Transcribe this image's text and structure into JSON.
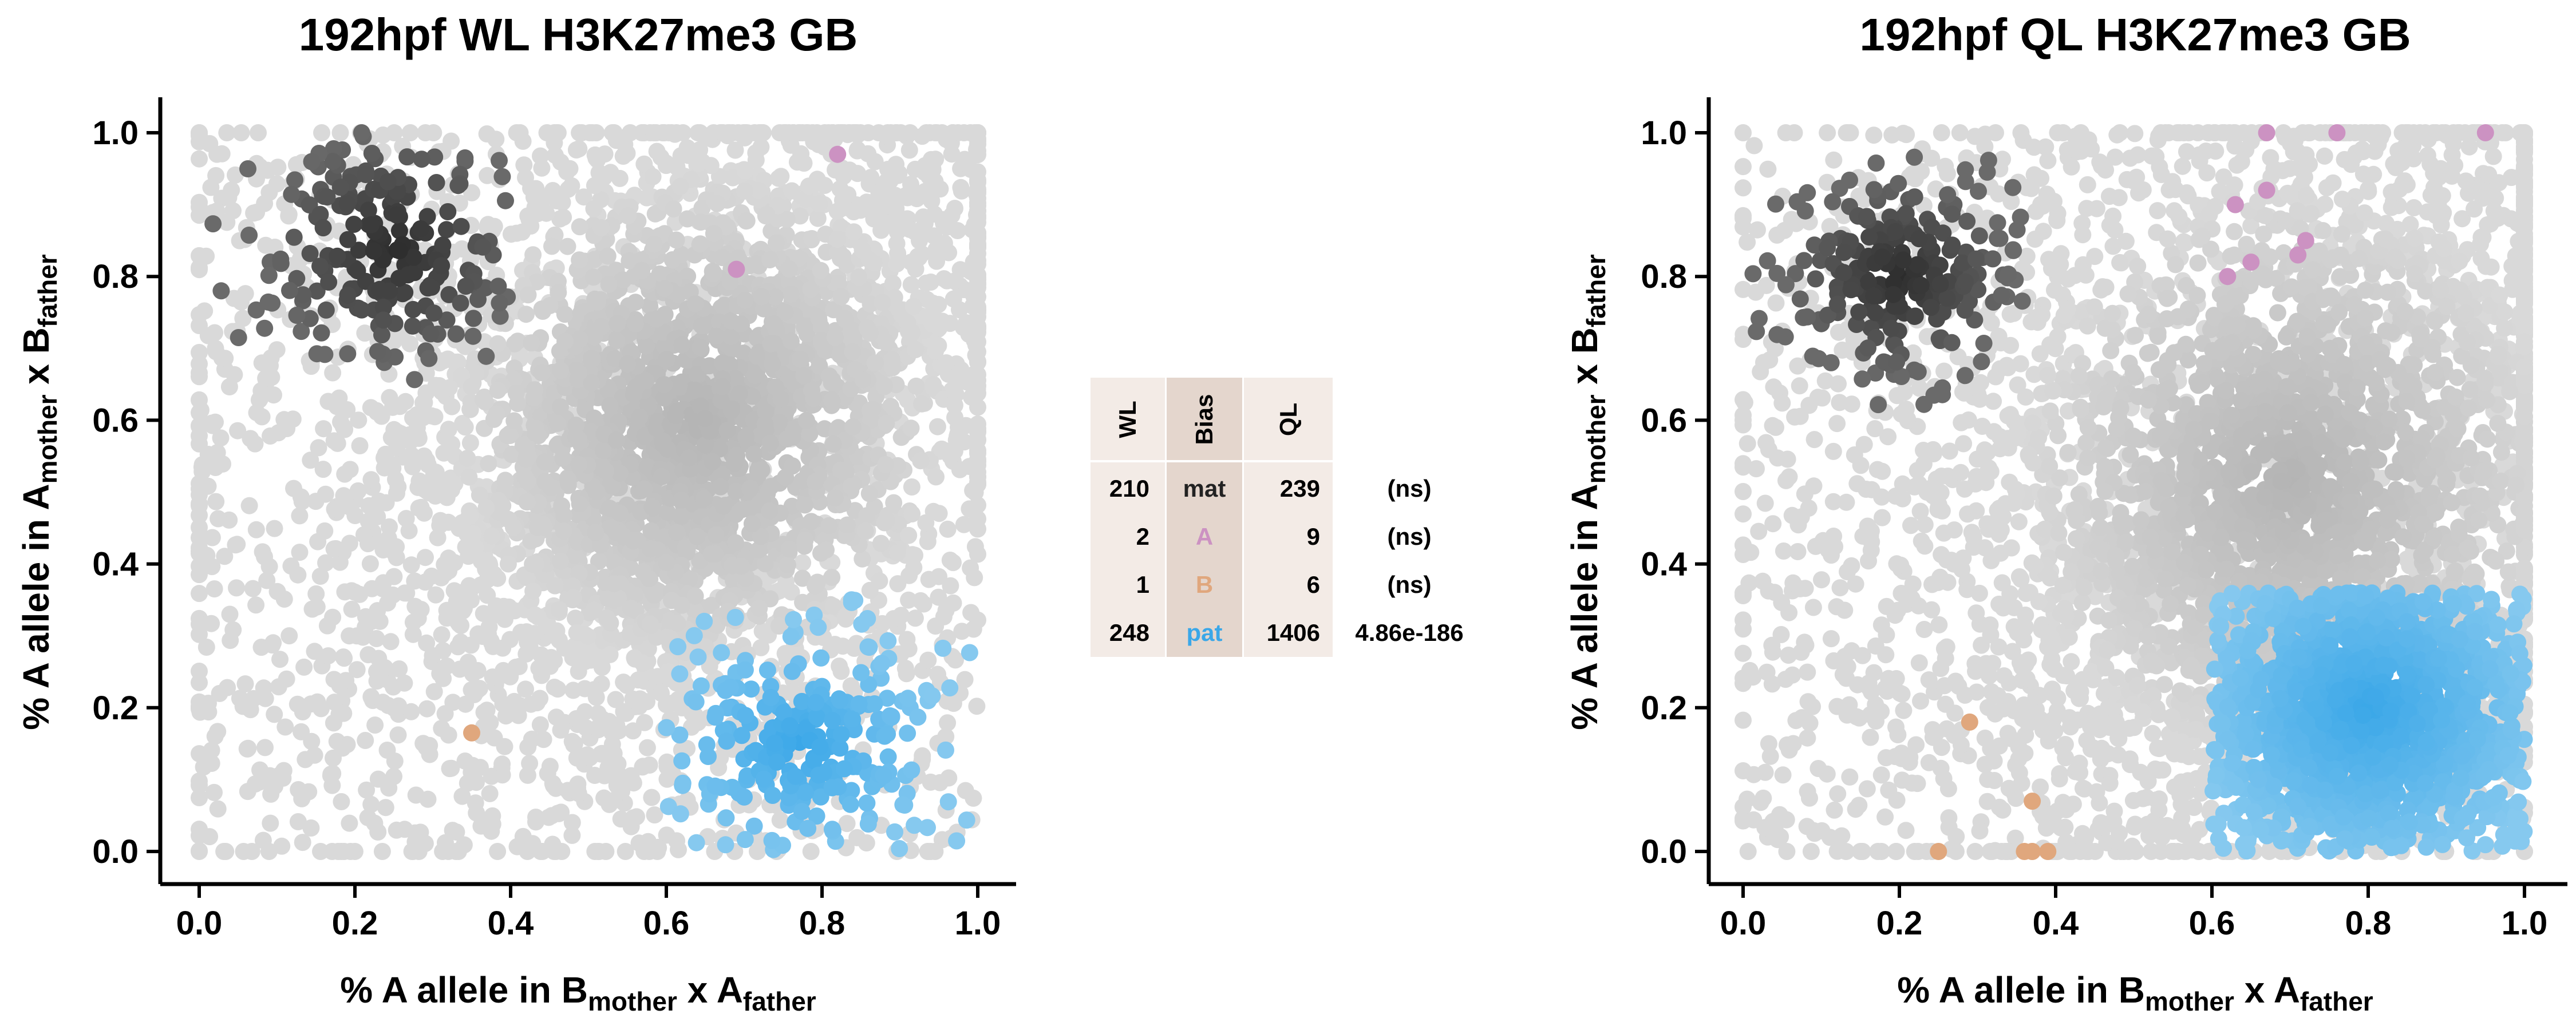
{
  "colors": {
    "background_points": "#d9d9d9",
    "density_core": "#b4b4b4",
    "mat": "#2b2b2b",
    "pat": "#3aa7e8",
    "A": "#cc92c2",
    "B": "#e0a77d"
  },
  "chart_data": [
    {
      "type": "scatter",
      "title": "192hpf WL H3K27me3 GB",
      "xlabel": {
        "main": "% A allele in B",
        "sub1": "mother",
        "mid": " x A",
        "sub2": "father"
      },
      "ylabel": {
        "main": "% A allele in A",
        "sub1": "mother",
        "mid": " x B",
        "sub2": "father"
      },
      "xlim": [
        0.0,
        1.0
      ],
      "ylim": [
        0.0,
        1.0
      ],
      "xticks": [
        "0.0",
        "0.2",
        "0.4",
        "0.6",
        "0.8",
        "1.0"
      ],
      "yticks": [
        "0.0",
        "0.2",
        "0.4",
        "0.6",
        "0.8",
        "1.0"
      ],
      "grid": false,
      "background_density": {
        "center": [
          0.64,
          0.6
        ],
        "spread": [
          0.2,
          0.22
        ]
      },
      "groups": [
        {
          "name": "mat",
          "count": 210,
          "center": [
            0.25,
            0.84
          ],
          "spread": [
            0.07,
            0.07
          ],
          "xrange": [
            0.0,
            0.4
          ],
          "yrange": [
            0.65,
            1.0
          ]
        },
        {
          "name": "pat",
          "count": 248,
          "center": [
            0.77,
            0.15
          ],
          "spread": [
            0.08,
            0.07
          ],
          "xrange": [
            0.6,
            1.0
          ],
          "yrange": [
            0.0,
            0.36
          ]
        },
        {
          "name": "A",
          "count": 2,
          "points": [
            [
              0.82,
              0.97
            ],
            [
              0.69,
              0.81
            ]
          ]
        },
        {
          "name": "B",
          "count": 1,
          "points": [
            [
              0.35,
              0.165
            ]
          ]
        }
      ]
    },
    {
      "type": "scatter",
      "title": "192hpf QL H3K27me3 GB",
      "xlabel": {
        "main": "% A allele in B",
        "sub1": "mother",
        "mid": " x A",
        "sub2": "father"
      },
      "ylabel": {
        "main": "% A allele in A",
        "sub1": "mother",
        "mid": " x B",
        "sub2": "father"
      },
      "xlim": [
        0.0,
        1.0
      ],
      "ylim": [
        0.0,
        1.0
      ],
      "xticks": [
        "0.0",
        "0.2",
        "0.4",
        "0.6",
        "0.8",
        "1.0"
      ],
      "yticks": [
        "0.0",
        "0.2",
        "0.4",
        "0.6",
        "0.8",
        "1.0"
      ],
      "grid": false,
      "background_density": {
        "center": [
          0.7,
          0.52
        ],
        "spread": [
          0.22,
          0.25
        ]
      },
      "groups": [
        {
          "name": "mat",
          "count": 239,
          "center": [
            0.2,
            0.8
          ],
          "spread": [
            0.06,
            0.06
          ],
          "xrange": [
            0.0,
            0.4
          ],
          "yrange": [
            0.62,
            1.0
          ]
        },
        {
          "name": "pat",
          "count": 1406,
          "center": [
            0.8,
            0.2
          ],
          "spread": [
            0.1,
            0.1
          ],
          "xrange": [
            0.6,
            1.0
          ],
          "yrange": [
            0.0,
            0.36
          ]
        },
        {
          "name": "A",
          "count": 9,
          "points": [
            [
              0.67,
              1.0
            ],
            [
              0.76,
              1.0
            ],
            [
              0.95,
              1.0
            ],
            [
              0.67,
              0.92
            ],
            [
              0.63,
              0.9
            ],
            [
              0.72,
              0.85
            ],
            [
              0.65,
              0.82
            ],
            [
              0.71,
              0.83
            ],
            [
              0.62,
              0.8
            ]
          ]
        },
        {
          "name": "B",
          "count": 6,
          "points": [
            [
              0.29,
              0.18
            ],
            [
              0.37,
              0.07
            ],
            [
              0.36,
              0.0
            ],
            [
              0.37,
              0.0
            ],
            [
              0.39,
              0.0
            ],
            [
              0.25,
              0.0
            ]
          ]
        }
      ]
    }
  ],
  "table": {
    "headers": [
      "WL",
      "Bias",
      "QL",
      ""
    ],
    "rows": [
      {
        "wl": "210",
        "bias": "mat",
        "ql": "239",
        "p": "(ns)"
      },
      {
        "wl": "2",
        "bias": "A",
        "ql": "9",
        "p": "(ns)"
      },
      {
        "wl": "1",
        "bias": "B",
        "ql": "6",
        "p": "(ns)"
      },
      {
        "wl": "248",
        "bias": "pat",
        "ql": "1406",
        "p": "4.86e-186"
      }
    ]
  }
}
